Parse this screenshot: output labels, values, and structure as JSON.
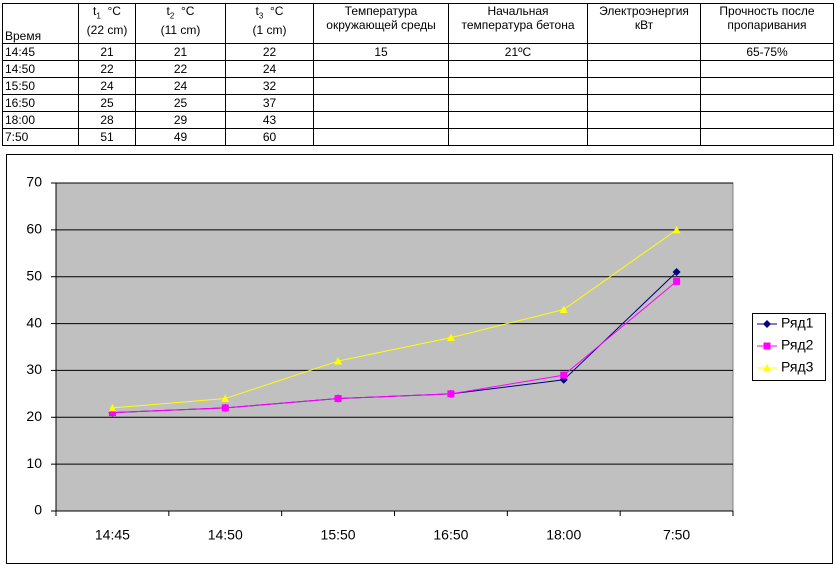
{
  "table": {
    "header": {
      "time": "Время",
      "t1": {
        "symbol": "t",
        "index": "1",
        "unit": "°C",
        "depth": "(22 cm)"
      },
      "t2": {
        "symbol": "t",
        "index": "2",
        "unit": "°C",
        "depth": "(11 cm)"
      },
      "t3": {
        "symbol": "t",
        "index": "3",
        "unit": "°C",
        "depth": "(1 cm)"
      },
      "ambient": "Температура окружающей среды",
      "initial": "Начальная температура бетона",
      "energy": "Электроэнергия кВт",
      "strength": "Прочность после пропаривания"
    },
    "rows": [
      [
        "14:45",
        21,
        21,
        22
      ],
      [
        "14:50",
        22,
        22,
        24
      ],
      [
        "15:50",
        24,
        24,
        32
      ],
      [
        "16:50",
        25,
        25,
        37
      ],
      [
        "18:00",
        28,
        29,
        43
      ],
      [
        "7:50",
        51,
        49,
        60
      ]
    ],
    "conditions": {
      "ambient": "15",
      "initial": "21ºC",
      "strength": "65-75%"
    }
  },
  "chart_data": {
    "type": "line",
    "categories": [
      "14:45",
      "14:50",
      "15:50",
      "16:50",
      "18:00",
      "7:50"
    ],
    "series": [
      {
        "name": "Ряд1",
        "color": "#000080",
        "marker": "diamond",
        "values": [
          21,
          22,
          24,
          25,
          28,
          51
        ]
      },
      {
        "name": "Ряд2",
        "color": "#ff00ff",
        "marker": "square",
        "values": [
          21,
          22,
          24,
          25,
          29,
          49
        ]
      },
      {
        "name": "Ряд3",
        "color": "#ffff00",
        "marker": "triangle",
        "values": [
          22,
          24,
          32,
          37,
          43,
          60
        ]
      }
    ],
    "ylim": [
      0,
      70
    ],
    "yticks": [
      0,
      10,
      20,
      30,
      40,
      50,
      60,
      70
    ],
    "grid": true,
    "plot_background": "#c0c0c0",
    "legend": "right"
  }
}
